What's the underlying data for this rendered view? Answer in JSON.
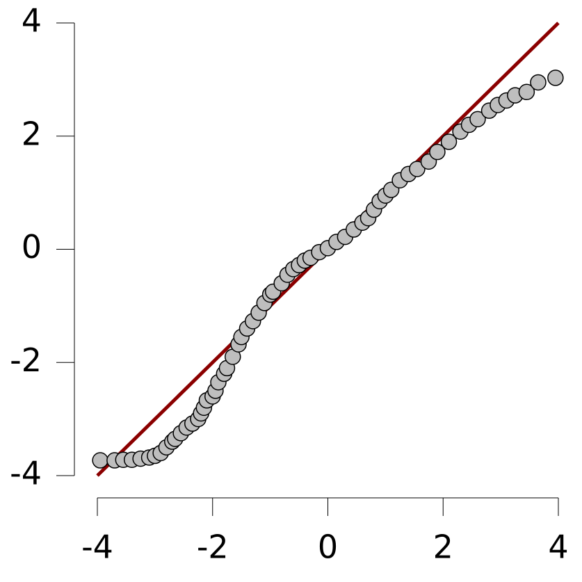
{
  "chart_data": {
    "type": "scatter",
    "x": [
      -3.95,
      -3.7,
      -3.55,
      -3.4,
      -3.25,
      -3.1,
      -3.0,
      -2.9,
      -2.8,
      -2.7,
      -2.65,
      -2.55,
      -2.45,
      -2.35,
      -2.25,
      -2.2,
      -2.15,
      -2.1,
      -2.0,
      -1.95,
      -1.9,
      -1.8,
      -1.75,
      -1.65,
      -1.55,
      -1.5,
      -1.4,
      -1.3,
      -1.2,
      -1.1,
      -1.0,
      -0.95,
      -0.8,
      -0.7,
      -0.6,
      -0.5,
      -0.4,
      -0.3,
      -0.15,
      0,
      0.15,
      0.3,
      0.45,
      0.6,
      0.7,
      0.8,
      0.9,
      1.0,
      1.1,
      1.25,
      1.4,
      1.55,
      1.75,
      1.9,
      2.1,
      2.3,
      2.45,
      2.6,
      2.8,
      2.95,
      3.1,
      3.25,
      3.45,
      3.65,
      3.95
    ],
    "values": [
      -3.73,
      -3.73,
      -3.72,
      -3.72,
      -3.7,
      -3.68,
      -3.65,
      -3.6,
      -3.5,
      -3.4,
      -3.35,
      -3.25,
      -3.15,
      -3.08,
      -3.0,
      -2.9,
      -2.8,
      -2.67,
      -2.6,
      -2.5,
      -2.35,
      -2.2,
      -2.1,
      -1.9,
      -1.68,
      -1.55,
      -1.4,
      -1.27,
      -1.12,
      -0.95,
      -0.8,
      -0.75,
      -0.6,
      -0.45,
      -0.35,
      -0.28,
      -0.2,
      -0.15,
      -0.05,
      0.02,
      0.13,
      0.22,
      0.35,
      0.47,
      0.55,
      0.7,
      0.85,
      0.95,
      1.05,
      1.22,
      1.33,
      1.42,
      1.55,
      1.72,
      1.9,
      2.08,
      2.2,
      2.3,
      2.45,
      2.55,
      2.63,
      2.72,
      2.78,
      2.95,
      3.03
    ],
    "color": "#bebebe",
    "reference_line": {
      "x": [
        -4,
        4
      ],
      "y": [
        -4,
        4
      ],
      "color": "#8b0000"
    },
    "xlim": [
      -4,
      4
    ],
    "ylim": [
      -4,
      4
    ],
    "xticks": [
      -4,
      -2,
      0,
      2,
      4
    ],
    "yticks": [
      -4,
      -2,
      0,
      2,
      4
    ]
  }
}
